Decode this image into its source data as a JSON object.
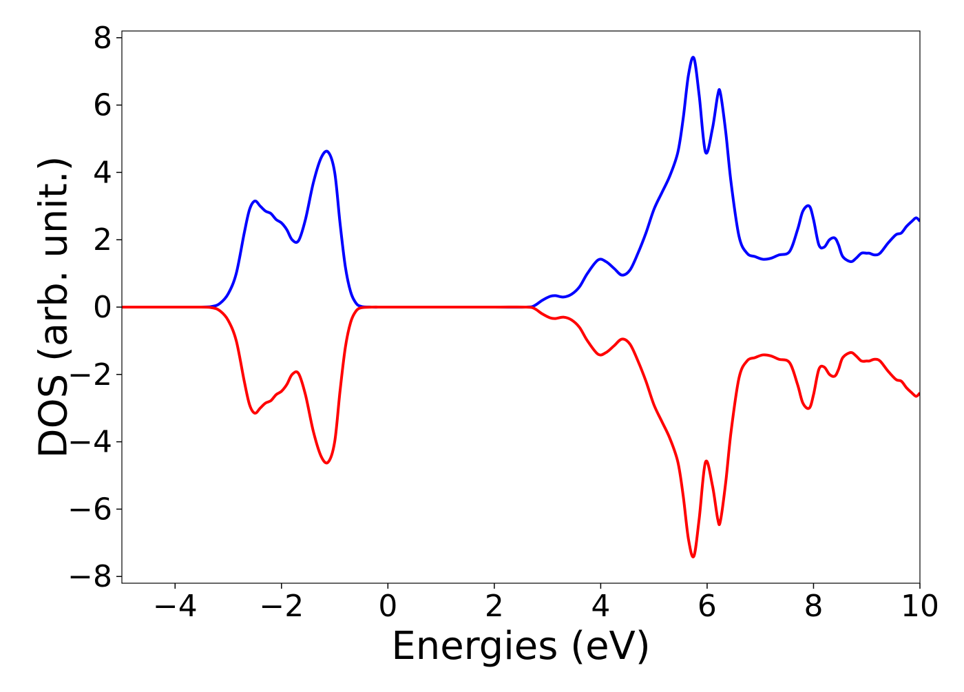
{
  "chart_data": {
    "type": "line",
    "title": "",
    "xlabel": "Energies (eV)",
    "ylabel": "DOS (arb. unit.)",
    "xlim": [
      -5,
      10
    ],
    "ylim": [
      -8.2,
      8.2
    ],
    "xticks": [
      -4,
      -2,
      0,
      2,
      4,
      6,
      8,
      10
    ],
    "yticks": [
      -8,
      -6,
      -4,
      -2,
      0,
      2,
      4,
      6,
      8
    ],
    "xtick_labels": [
      "−4",
      "−2",
      "0",
      "2",
      "4",
      "6",
      "8",
      "10"
    ],
    "ytick_labels": [
      "−8",
      "−6",
      "−4",
      "−2",
      "0",
      "2",
      "4",
      "6",
      "8"
    ],
    "grid": false,
    "legend": "none",
    "series": [
      {
        "color": "#0000ff",
        "x": [
          -5.0,
          -3.6,
          -3.3,
          -3.15,
          -3.0,
          -2.85,
          -2.7,
          -2.6,
          -2.5,
          -2.4,
          -2.3,
          -2.2,
          -2.1,
          -2.0,
          -1.9,
          -1.8,
          -1.68,
          -1.55,
          -1.4,
          -1.25,
          -1.12,
          -1.0,
          -0.9,
          -0.8,
          -0.7,
          -0.6,
          -0.5,
          -0.3,
          0.0,
          1.0,
          2.0,
          2.6,
          2.75,
          2.9,
          3.05,
          3.15,
          3.3,
          3.45,
          3.6,
          3.75,
          3.95,
          4.1,
          4.25,
          4.4,
          4.55,
          4.7,
          4.85,
          5.0,
          5.15,
          5.3,
          5.45,
          5.55,
          5.65,
          5.75,
          5.85,
          5.97,
          6.1,
          6.2,
          6.25,
          6.35,
          6.45,
          6.6,
          6.75,
          6.9,
          7.05,
          7.2,
          7.35,
          7.55,
          7.7,
          7.8,
          7.92,
          8.0,
          8.1,
          8.2,
          8.3,
          8.4,
          8.47,
          8.55,
          8.7,
          8.8,
          8.9,
          9.0,
          9.05,
          9.15,
          9.25,
          9.4,
          9.55,
          9.65,
          9.75,
          9.85,
          9.93,
          10.0
        ],
        "values": [
          0,
          0,
          0.02,
          0.12,
          0.4,
          1.0,
          2.2,
          2.9,
          3.15,
          3.0,
          2.85,
          2.78,
          2.6,
          2.5,
          2.3,
          2.0,
          1.97,
          2.6,
          3.7,
          4.45,
          4.6,
          4.0,
          2.5,
          1.2,
          0.45,
          0.12,
          0.02,
          0,
          0,
          0,
          0,
          0,
          0.04,
          0.2,
          0.32,
          0.34,
          0.3,
          0.38,
          0.6,
          1.0,
          1.4,
          1.35,
          1.15,
          0.95,
          1.1,
          1.6,
          2.2,
          2.9,
          3.4,
          3.9,
          4.6,
          5.6,
          6.9,
          7.4,
          6.3,
          4.6,
          5.3,
          6.3,
          6.35,
          5.2,
          3.7,
          2.1,
          1.6,
          1.5,
          1.42,
          1.45,
          1.55,
          1.65,
          2.3,
          2.85,
          3.0,
          2.6,
          1.85,
          1.78,
          2.0,
          2.05,
          1.85,
          1.5,
          1.35,
          1.45,
          1.6,
          1.6,
          1.6,
          1.55,
          1.6,
          1.9,
          2.15,
          2.2,
          2.4,
          2.55,
          2.65,
          2.55
        ]
      },
      {
        "color": "#ff0000",
        "x": [
          -5.0,
          -3.6,
          -3.3,
          -3.15,
          -3.0,
          -2.85,
          -2.7,
          -2.6,
          -2.5,
          -2.4,
          -2.3,
          -2.2,
          -2.1,
          -2.0,
          -1.9,
          -1.8,
          -1.68,
          -1.55,
          -1.4,
          -1.25,
          -1.12,
          -1.0,
          -0.9,
          -0.8,
          -0.7,
          -0.6,
          -0.5,
          -0.3,
          0.0,
          1.0,
          2.0,
          2.6,
          2.75,
          2.9,
          3.05,
          3.15,
          3.3,
          3.45,
          3.6,
          3.75,
          3.95,
          4.1,
          4.25,
          4.4,
          4.55,
          4.7,
          4.85,
          5.0,
          5.15,
          5.3,
          5.45,
          5.55,
          5.65,
          5.75,
          5.85,
          5.97,
          6.1,
          6.2,
          6.25,
          6.35,
          6.45,
          6.6,
          6.75,
          6.9,
          7.05,
          7.2,
          7.35,
          7.55,
          7.7,
          7.8,
          7.92,
          8.0,
          8.1,
          8.2,
          8.3,
          8.4,
          8.47,
          8.55,
          8.7,
          8.8,
          8.9,
          9.0,
          9.05,
          9.15,
          9.25,
          9.4,
          9.55,
          9.65,
          9.75,
          9.85,
          9.93,
          10.0
        ],
        "values": [
          0,
          0,
          -0.02,
          -0.12,
          -0.4,
          -1.0,
          -2.2,
          -2.9,
          -3.15,
          -3.0,
          -2.85,
          -2.78,
          -2.6,
          -2.5,
          -2.3,
          -2.0,
          -1.97,
          -2.6,
          -3.7,
          -4.45,
          -4.6,
          -4.0,
          -2.5,
          -1.2,
          -0.45,
          -0.12,
          -0.02,
          0,
          0,
          0,
          0,
          0,
          -0.04,
          -0.2,
          -0.32,
          -0.34,
          -0.3,
          -0.38,
          -0.6,
          -1.0,
          -1.4,
          -1.35,
          -1.15,
          -0.95,
          -1.1,
          -1.6,
          -2.2,
          -2.9,
          -3.4,
          -3.9,
          -4.6,
          -5.6,
          -6.9,
          -7.4,
          -6.3,
          -4.6,
          -5.3,
          -6.3,
          -6.35,
          -5.2,
          -3.7,
          -2.1,
          -1.6,
          -1.5,
          -1.42,
          -1.45,
          -1.55,
          -1.65,
          -2.3,
          -2.85,
          -3.0,
          -2.6,
          -1.85,
          -1.78,
          -2.0,
          -2.05,
          -1.85,
          -1.5,
          -1.35,
          -1.45,
          -1.6,
          -1.6,
          -1.6,
          -1.55,
          -1.6,
          -1.9,
          -2.15,
          -2.2,
          -2.4,
          -2.55,
          -2.65,
          -2.55
        ]
      }
    ]
  }
}
